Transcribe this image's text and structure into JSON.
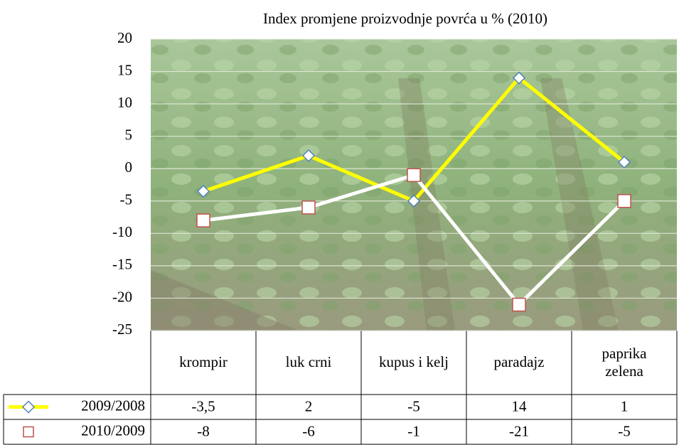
{
  "chart_data": {
    "type": "line",
    "title": "Index promjene proizvodnje povrća u % (2010)",
    "categories": [
      "krompir",
      "luk crni",
      "kupus i kelj",
      "paradajz",
      "paprika zelena"
    ],
    "series": [
      {
        "name": "2009/2008",
        "color": "#ffff00",
        "marker": "diamond",
        "marker_color": "#4f81bd",
        "values": [
          -3.5,
          2,
          -5,
          14,
          1
        ],
        "value_labels": [
          "-3,5",
          "2",
          "-5",
          "14",
          "1"
        ]
      },
      {
        "name": "2010/2009",
        "color": "#ffffff",
        "marker": "square",
        "marker_color": "#c0504d",
        "values": [
          -8,
          -6,
          -1,
          -21,
          -5
        ]
      }
    ],
    "ylim": [
      -25,
      20
    ],
    "yticks": [
      -25,
      -20,
      -15,
      -10,
      -5,
      0,
      5,
      10,
      15,
      20
    ],
    "grid": true
  }
}
